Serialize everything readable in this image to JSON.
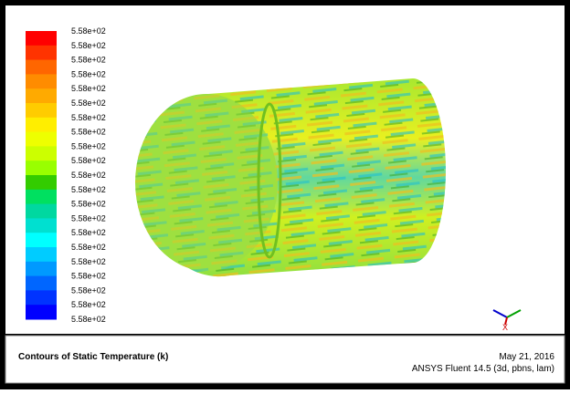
{
  "colorbar": {
    "colors": [
      "#ff0000",
      "#ff3300",
      "#ff6600",
      "#ff8c00",
      "#ffaa00",
      "#ffcc00",
      "#ffee00",
      "#eeff00",
      "#ccff00",
      "#99ff00",
      "#33cc00",
      "#00e060",
      "#00d8a0",
      "#00e0d0",
      "#00ffff",
      "#00ccff",
      "#0099ff",
      "#0066ff",
      "#0033ff",
      "#0000ff"
    ],
    "labels": [
      "5.58e+02",
      "5.58e+02",
      "5.58e+02",
      "5.58e+02",
      "5.58e+02",
      "5.58e+02",
      "5.58e+02",
      "5.58e+02",
      "5.58e+02",
      "5.58e+02",
      "5.58e+02",
      "5.58e+02",
      "5.58e+02",
      "5.58e+02",
      "5.58e+02",
      "5.58e+02",
      "5.58e+02",
      "5.58e+02",
      "5.58e+02",
      "5.58e+02",
      "5.58e+02"
    ]
  },
  "triad": {
    "x_label": "X"
  },
  "caption": {
    "title": "Contours of Static Temperature (k)",
    "date": "May 21, 2016",
    "software": "ANSYS Fluent 14.5 (3d, pbns, lam)"
  }
}
